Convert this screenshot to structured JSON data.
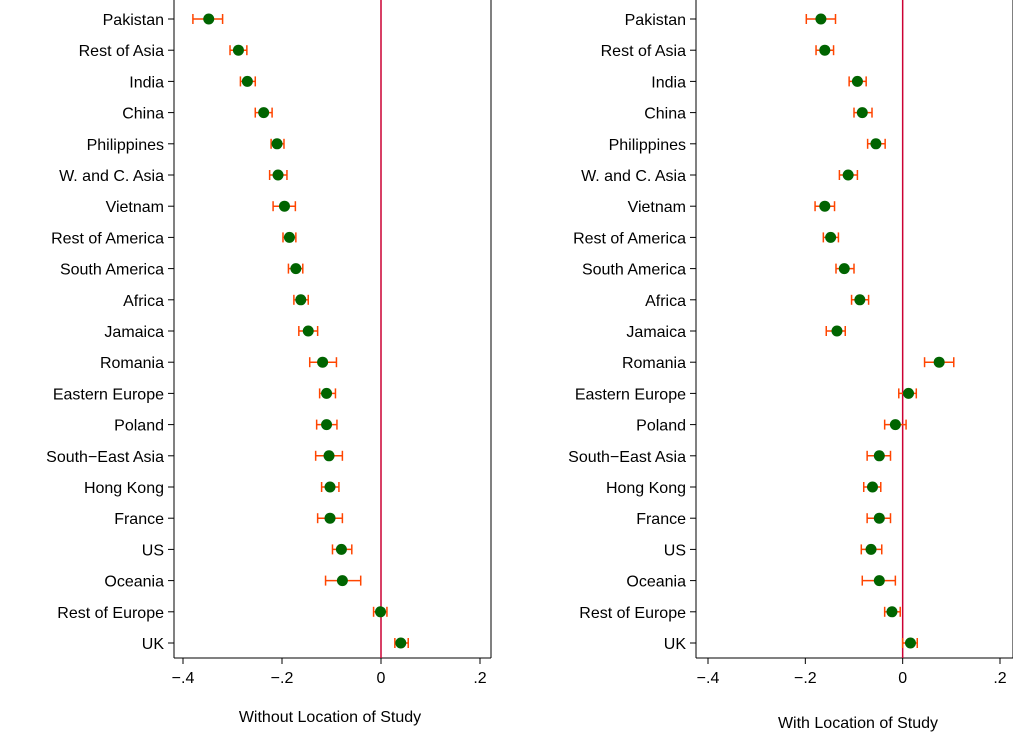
{
  "chart_data": [
    {
      "type": "scatter",
      "subtype": "coefficient-plot-horizontal-error-bars",
      "xlabel": "Without Location of Study",
      "xlim": [
        -0.42,
        0.22
      ],
      "xticks": [
        -0.4,
        -0.2,
        0,
        0.2
      ],
      "xtick_labels": [
        "−.4",
        "−.2",
        "0",
        ".2"
      ],
      "reference_line": 0,
      "categories": [
        "Pakistan",
        "Rest of Asia",
        "India",
        "China",
        "Philippines",
        "W. and C. Asia",
        "Vietnam",
        "Rest of America",
        "South America",
        "Africa",
        "Jamaica",
        "Romania",
        "Eastern Europe",
        "Poland",
        "South−East Asia",
        "Hong Kong",
        "France",
        "US",
        "Oceania",
        "Rest of Europe",
        "UK"
      ],
      "values": [
        -0.348,
        -0.288,
        -0.27,
        -0.237,
        -0.21,
        -0.208,
        -0.195,
        -0.185,
        -0.172,
        -0.162,
        -0.147,
        -0.118,
        -0.11,
        -0.11,
        -0.105,
        -0.103,
        -0.103,
        -0.08,
        -0.078,
        -0.001,
        0.04
      ],
      "ci_low": [
        -0.38,
        -0.305,
        -0.284,
        -0.254,
        -0.222,
        -0.225,
        -0.218,
        -0.198,
        -0.187,
        -0.176,
        -0.166,
        -0.144,
        -0.124,
        -0.13,
        -0.132,
        -0.12,
        -0.128,
        -0.098,
        -0.112,
        -0.015,
        0.028
      ],
      "ci_high": [
        -0.32,
        -0.271,
        -0.254,
        -0.22,
        -0.196,
        -0.19,
        -0.173,
        -0.172,
        -0.158,
        -0.147,
        -0.128,
        -0.09,
        -0.092,
        -0.089,
        -0.078,
        -0.085,
        -0.078,
        -0.059,
        -0.041,
        0.012,
        0.055
      ],
      "grid": false,
      "colors": {
        "point": "#006400",
        "errorbar": "#ff4500",
        "refline": "#cc0033",
        "axis": "#000000"
      }
    },
    {
      "type": "scatter",
      "subtype": "coefficient-plot-horizontal-error-bars",
      "xlabel": "With Location of Study",
      "xlim": [
        -0.42,
        0.22
      ],
      "xticks": [
        -0.4,
        -0.2,
        0,
        0.2
      ],
      "xtick_labels": [
        "−.4",
        "−.2",
        "0",
        ".2"
      ],
      "reference_line": 0,
      "categories": [
        "Pakistan",
        "Rest of Asia",
        "India",
        "China",
        "Philippines",
        "W. and C. Asia",
        "Vietnam",
        "Rest of America",
        "South America",
        "Africa",
        "Jamaica",
        "Romania",
        "Eastern Europe",
        "Poland",
        "South−East Asia",
        "Hong Kong",
        "France",
        "US",
        "Oceania",
        "Rest of Europe",
        "UK"
      ],
      "values": [
        -0.168,
        -0.16,
        -0.093,
        -0.083,
        -0.055,
        -0.112,
        -0.16,
        -0.148,
        -0.12,
        -0.088,
        -0.135,
        0.075,
        0.012,
        -0.015,
        -0.048,
        -0.062,
        -0.048,
        -0.065,
        -0.048,
        -0.022,
        0.016
      ],
      "ci_low": [
        -0.198,
        -0.178,
        -0.11,
        -0.1,
        -0.072,
        -0.13,
        -0.18,
        -0.163,
        -0.137,
        -0.105,
        -0.157,
        0.045,
        -0.008,
        -0.037,
        -0.073,
        -0.08,
        -0.073,
        -0.085,
        -0.083,
        -0.037,
        0.0
      ],
      "ci_high": [
        -0.138,
        -0.142,
        -0.075,
        -0.063,
        -0.036,
        -0.093,
        -0.14,
        -0.132,
        -0.1,
        -0.07,
        -0.118,
        0.105,
        0.028,
        0.007,
        -0.025,
        -0.045,
        -0.025,
        -0.043,
        -0.015,
        -0.005,
        0.03
      ],
      "grid": false,
      "colors": {
        "point": "#006400",
        "errorbar": "#ff4500",
        "refline": "#cc0033",
        "axis": "#000000"
      }
    }
  ]
}
